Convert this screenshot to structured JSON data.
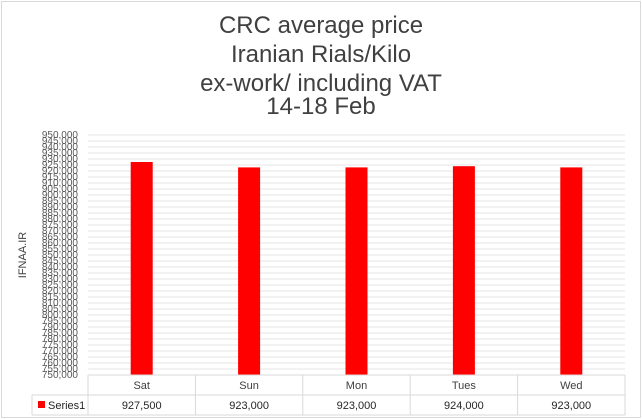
{
  "chart_data": {
    "type": "bar",
    "title_lines": [
      "CRC average price",
      "Iranian Rials/Kilo",
      "ex-work/ including VAT",
      "14-18 Feb"
    ],
    "ylabel": "IFNAA.IR",
    "categories": [
      "Sat",
      "Sun",
      "Mon",
      "Tues",
      "Wed"
    ],
    "series": [
      {
        "name": "Series1",
        "values": [
          927500,
          923000,
          923000,
          924000,
          923000
        ],
        "value_labels": [
          "927,500",
          "923,000",
          "923,000",
          "924,000",
          "923,000"
        ],
        "color": "#ff0000"
      }
    ],
    "ylim": [
      750000,
      950000
    ],
    "ytick_step": 5000,
    "grid": true,
    "legend": "data-table"
  }
}
